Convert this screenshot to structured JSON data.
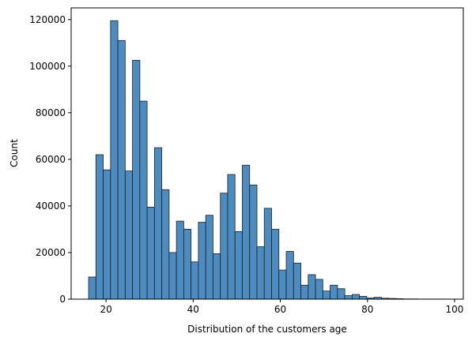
{
  "chart_data": {
    "type": "histogram",
    "title": "",
    "xlabel": "Distribution of the customers age",
    "ylabel": "Count",
    "xlim": [
      12,
      102
    ],
    "ylim": [
      0,
      125000
    ],
    "xticks": [
      20,
      40,
      60,
      80,
      100
    ],
    "yticks": [
      0,
      20000,
      40000,
      60000,
      80000,
      100000,
      120000
    ],
    "bin_width": 1.68,
    "bin_start": 16,
    "bar_color": "#4d8cc0",
    "edge_color": "#1f1f1f",
    "grid": false,
    "legend": "none",
    "values": [
      9500,
      62000,
      55500,
      119500,
      111000,
      55000,
      102500,
      85000,
      39500,
      65000,
      47000,
      20000,
      33500,
      30000,
      16000,
      33000,
      36000,
      19500,
      45500,
      53500,
      29000,
      57500,
      49000,
      22500,
      39000,
      30000,
      12500,
      20500,
      15500,
      6000,
      10500,
      8500,
      3500,
      6000,
      4500,
      1500,
      2000,
      1200,
      500,
      800,
      400,
      300,
      200,
      100,
      100,
      50,
      50,
      50,
      50
    ]
  },
  "labels": {
    "x_ticks": [
      "20",
      "40",
      "60",
      "80",
      "100"
    ],
    "y_ticks": [
      "0",
      "20000",
      "40000",
      "60000",
      "80000",
      "100000",
      "120000"
    ]
  }
}
